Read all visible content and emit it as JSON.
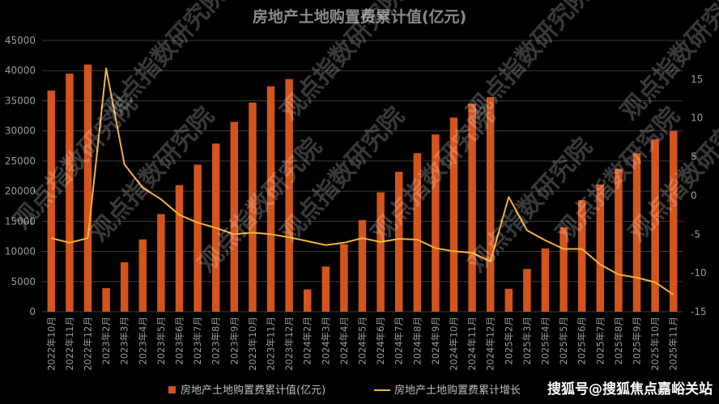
{
  "watermark_text": "观点指数研究院",
  "credit_text": "搜狐号@搜狐焦点嘉峪关站",
  "chart_data": {
    "type": "bar",
    "title": "房地产土地购置费累计值(亿元)",
    "categories": [
      "2022年10月",
      "2022年11月",
      "2022年12月",
      "2023年2月",
      "2023年3月",
      "2023年4月",
      "2023年5月",
      "2023年6月",
      "2023年7月",
      "2023年8月",
      "2023年9月",
      "2023年10月",
      "2023年11月",
      "2023年12月",
      "2024年2月",
      "2024年3月",
      "2024年4月",
      "2024年5月",
      "2024年6月",
      "2024年7月",
      "2024年8月",
      "2024年9月",
      "2024年10月",
      "2024年11月",
      "2024年12月",
      "2025年2月",
      "2025年3月",
      "2025年4月",
      "2025年5月",
      "2025年6月",
      "2025年7月",
      "2025年8月",
      "2025年9月",
      "2025年10月",
      "2025年11月"
    ],
    "series": [
      {
        "name": "房地产土地购置费累计值(亿元)",
        "type": "bar",
        "axis": "left",
        "color": "#d4541e",
        "values": [
          36700,
          39500,
          41000,
          3900,
          8200,
          12000,
          16200,
          21000,
          24400,
          27900,
          31500,
          34700,
          37400,
          38600,
          3700,
          7500,
          11200,
          15200,
          19800,
          23200,
          26300,
          29400,
          32200,
          34500,
          35600,
          3800,
          7100,
          10500,
          14000,
          18500,
          21100,
          23700,
          26300,
          28600,
          30000
        ]
      },
      {
        "name": "房地产土地购置费累计增长",
        "type": "line",
        "axis": "right",
        "color": "#f2b33a",
        "values": [
          -5.5,
          -6.1,
          -5.5,
          16.4,
          4.0,
          1.0,
          -0.5,
          -2.5,
          -3.5,
          -4.2,
          -5.0,
          -4.8,
          -5.0,
          -5.4,
          -5.9,
          -6.4,
          -6.1,
          -5.5,
          -6.0,
          -5.6,
          -5.7,
          -6.8,
          -7.2,
          -7.4,
          -8.5,
          -0.2,
          -4.5,
          -5.8,
          -6.9,
          -6.9,
          -8.9,
          -10.2,
          -10.6,
          -11.2,
          -12.8
        ]
      }
    ],
    "yleft": {
      "min": 0,
      "max": 45000,
      "ticks": [
        0,
        5000,
        10000,
        15000,
        20000,
        25000,
        30000,
        35000,
        40000,
        45000
      ]
    },
    "yright": {
      "min": -15,
      "max": 20,
      "ticks": [
        -15,
        -10,
        -5,
        0,
        5,
        10,
        15
      ]
    },
    "grid": true,
    "legend": "bottom",
    "legend_labels": [
      "房地产土地购置费累计值(亿元)",
      "房地产土地购置费累计增长"
    ]
  }
}
